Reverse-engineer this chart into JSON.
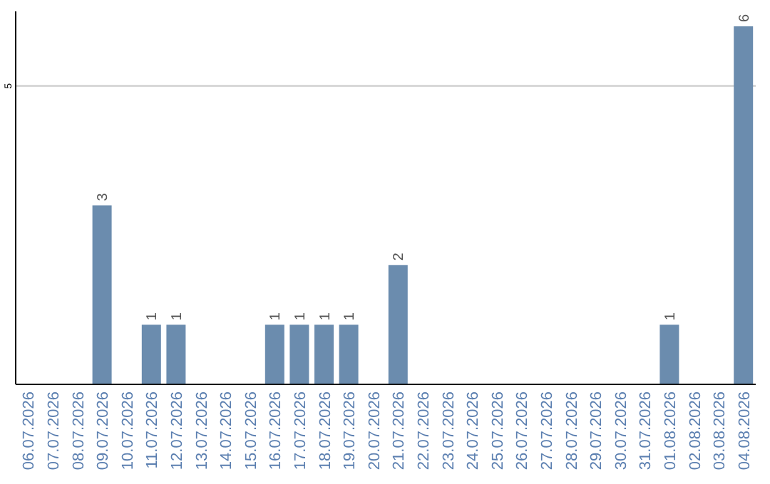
{
  "chart_data": {
    "type": "bar",
    "categories": [
      "06.07.2026",
      "07.07.2026",
      "08.07.2026",
      "09.07.2026",
      "10.07.2026",
      "11.07.2026",
      "12.07.2026",
      "13.07.2026",
      "14.07.2026",
      "15.07.2026",
      "16.07.2026",
      "17.07.2026",
      "18.07.2026",
      "19.07.2026",
      "20.07.2026",
      "21.07.2026",
      "22.07.2026",
      "23.07.2026",
      "24.07.2026",
      "25.07.2026",
      "26.07.2026",
      "27.07.2026",
      "28.07.2026",
      "29.07.2026",
      "30.07.2026",
      "31.07.2026",
      "01.08.2026",
      "02.08.2026",
      "03.08.2026",
      "04.08.2026"
    ],
    "values": [
      0,
      0,
      0,
      3,
      0,
      1,
      1,
      0,
      0,
      0,
      1,
      1,
      1,
      1,
      0,
      2,
      0,
      0,
      0,
      0,
      0,
      0,
      0,
      0,
      0,
      0,
      1,
      0,
      0,
      6
    ],
    "color": "#6b8cae",
    "value_labels": [
      null,
      null,
      null,
      "3",
      null,
      "1",
      "1",
      null,
      null,
      null,
      "1",
      "1",
      "1",
      "1",
      null,
      "2",
      null,
      null,
      null,
      null,
      null,
      null,
      null,
      null,
      null,
      null,
      "1",
      null,
      null,
      "6"
    ],
    "ylim": [
      0,
      6.25
    ],
    "yticks": [
      5
    ],
    "grid": "y"
  }
}
